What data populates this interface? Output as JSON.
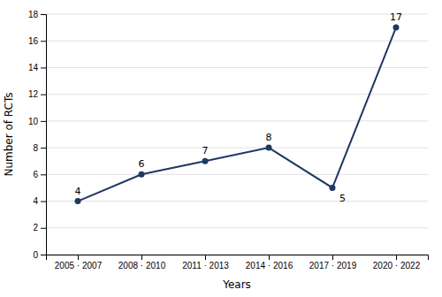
{
  "chart_data": {
    "type": "line",
    "categories": [
      "2005 · 2007",
      "2008 · 2010",
      "2011 · 2013",
      "2014 · 2016",
      "2017 · 2019",
      "2020 · 2022"
    ],
    "values": [
      4,
      6,
      7,
      8,
      5,
      17
    ],
    "color": "#1F3864",
    "marker": "circle",
    "xlabel": "Years",
    "ylabel": "Number of RCTs",
    "ylim": [
      0,
      18
    ],
    "yticks": [
      0,
      2,
      4,
      6,
      8,
      10,
      12,
      14,
      16,
      18
    ],
    "grid": true,
    "data_labels": true
  }
}
